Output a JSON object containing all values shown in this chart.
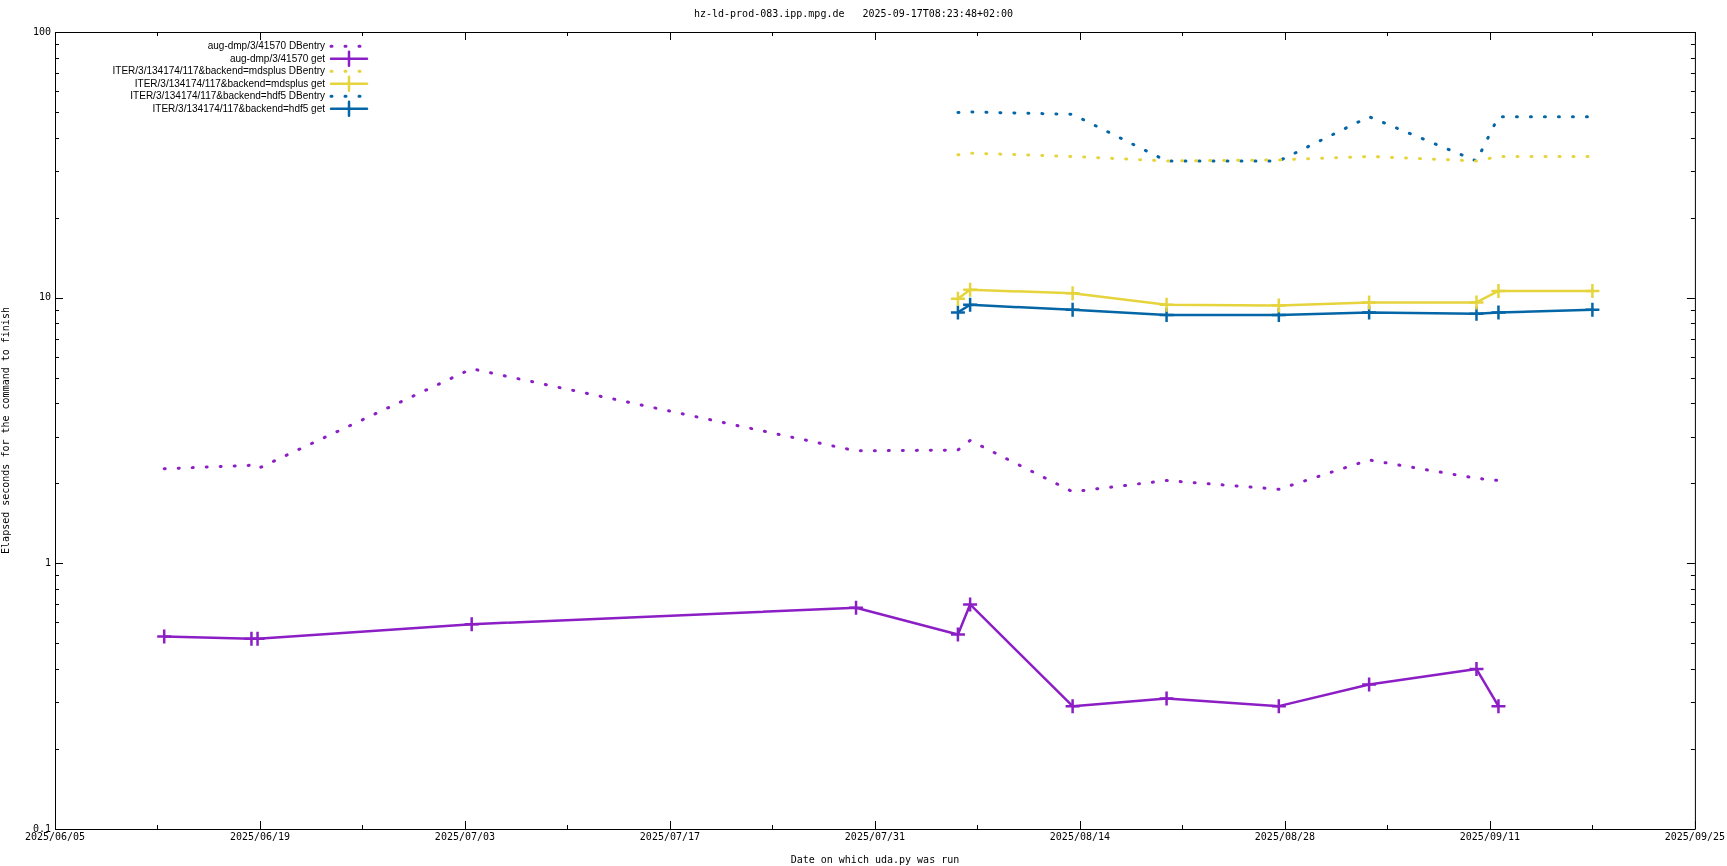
{
  "chart_data": {
    "type": "line",
    "title": "hz-ld-prod-083.ipp.mpg.de   2025-09-17T08:23:48+02:00",
    "xlabel": "Date on which uda.py was run",
    "ylabel": "Elapsed seconds for the command to finish",
    "log": "y",
    "grid": false,
    "legend": "top left",
    "xlim": [
      "2025-06-05",
      "2025-09-25"
    ],
    "xticks": [
      {
        "value": "2025-06-05",
        "label": "2025/06/05"
      },
      {
        "value": "2025-06-12",
        "label": null
      },
      {
        "value": "2025-06-19",
        "label": "2025/06/19"
      },
      {
        "value": "2025-06-26",
        "label": null
      },
      {
        "value": "2025-07-03",
        "label": "2025/07/03"
      },
      {
        "value": "2025-07-10",
        "label": null
      },
      {
        "value": "2025-07-17",
        "label": "2025/07/17"
      },
      {
        "value": "2025-07-24",
        "label": null
      },
      {
        "value": "2025-07-31",
        "label": "2025/07/31"
      },
      {
        "value": "2025-08-07",
        "label": null
      },
      {
        "value": "2025-08-14",
        "label": "2025/08/14"
      },
      {
        "value": "2025-08-21",
        "label": null
      },
      {
        "value": "2025-08-28",
        "label": "2025/08/28"
      },
      {
        "value": "2025-09-04",
        "label": null
      },
      {
        "value": "2025-09-11",
        "label": "2025/09/11"
      },
      {
        "value": "2025-09-18",
        "label": null
      },
      {
        "value": "2025-09-25",
        "label": "2025/09/25"
      }
    ],
    "ylim": [
      0.1,
      100
    ],
    "yticks": [
      0.1,
      {
        "value": 0.2,
        "label": null
      },
      {
        "value": 0.3,
        "label": null
      },
      {
        "value": 0.4,
        "label": null
      },
      {
        "value": 0.5,
        "label": null
      },
      {
        "value": 0.6,
        "label": null
      },
      {
        "value": 0.7,
        "label": null
      },
      {
        "value": 0.8,
        "label": null
      },
      {
        "value": 0.9,
        "label": null
      },
      1,
      {
        "value": 2,
        "label": null
      },
      {
        "value": 3,
        "label": null
      },
      {
        "value": 4,
        "label": null
      },
      {
        "value": 5,
        "label": null
      },
      {
        "value": 6,
        "label": null
      },
      {
        "value": 7,
        "label": null
      },
      {
        "value": 8,
        "label": null
      },
      {
        "value": 9,
        "label": null
      },
      10,
      {
        "value": 20,
        "label": null
      },
      {
        "value": 30,
        "label": null
      },
      {
        "value": 40,
        "label": null
      },
      {
        "value": 50,
        "label": null
      },
      {
        "value": 60,
        "label": null
      },
      {
        "value": 70,
        "label": null
      },
      {
        "value": 80,
        "label": null
      },
      {
        "value": 90,
        "label": null
      },
      100
    ],
    "series": [
      {
        "name": "aug-dmp/3/41570 DBentry",
        "color": "#8b1ec4",
        "marker": "none",
        "line_style": "dotted",
        "x": [
          "2025-06-12T11:00",
          "2025-06-18T10:00",
          "2025-06-18T20:00",
          "2025-07-03T11:00",
          "2025-07-29T17:00",
          "2025-08-05T16:00",
          "2025-08-06T12:00",
          "2025-08-13T12:00",
          "2025-08-19T22:00",
          "2025-08-27T14:00",
          "2025-09-02T18:00",
          "2025-09-10T02:00",
          "2025-09-11T14:00"
        ],
        "values": [
          2.27,
          2.34,
          2.27,
          5.4,
          2.65,
          2.67,
          2.9,
          1.86,
          2.05,
          1.9,
          2.45,
          2.09,
          2.05
        ]
      },
      {
        "name": "aug-dmp/3/41570 get",
        "color": "#8b1ec4",
        "marker": "cross",
        "line_style": "solid",
        "x": [
          "2025-06-12T11:00",
          "2025-06-18T10:00",
          "2025-06-18T20:00",
          "2025-07-03T11:00",
          "2025-07-29T17:00",
          "2025-08-05T16:00",
          "2025-08-06T12:00",
          "2025-08-13T12:00",
          "2025-08-19T22:00",
          "2025-08-27T14:00",
          "2025-09-02T18:00",
          "2025-09-10T02:00",
          "2025-09-11T14:00"
        ],
        "values": [
          0.53,
          0.52,
          0.52,
          0.59,
          0.68,
          0.54,
          0.7,
          0.29,
          0.31,
          0.29,
          0.35,
          0.4,
          0.29
        ]
      },
      {
        "name": "ITER/3/134174/117&backend=mdsplus DBentry",
        "color": "#e6d43c",
        "marker": "none",
        "line_style": "dotted",
        "x": [
          "2025-08-05T16:00",
          "2025-08-06T12:00",
          "2025-08-13T12:00",
          "2025-08-19T22:00",
          "2025-08-27T14:00",
          "2025-09-02T18:00",
          "2025-09-10T02:00",
          "2025-09-11T14:00",
          "2025-09-18T00:00"
        ],
        "values": [
          34.5,
          35,
          34,
          32.7,
          33,
          34,
          32.7,
          34,
          34
        ]
      },
      {
        "name": "ITER/3/134174/117&backend=mdsplus get",
        "color": "#e6d43c",
        "marker": "cross",
        "line_style": "solid",
        "x": [
          "2025-08-05T16:00",
          "2025-08-06T12:00",
          "2025-08-13T12:00",
          "2025-08-19T22:00",
          "2025-08-27T14:00",
          "2025-09-02T18:00",
          "2025-09-10T02:00",
          "2025-09-11T14:00",
          "2025-09-18T00:00"
        ],
        "values": [
          9.9,
          10.7,
          10.4,
          9.4,
          9.35,
          9.6,
          9.6,
          10.6,
          10.6
        ]
      },
      {
        "name": "ITER/3/134174/117&backend=hdf5 DBentry",
        "color": "#0466a6",
        "marker": "none",
        "line_style": "dotted",
        "x": [
          "2025-08-05T16:00",
          "2025-08-06T12:00",
          "2025-08-13T12:00",
          "2025-08-19T22:00",
          "2025-08-27T14:00",
          "2025-09-02T18:00",
          "2025-09-10T02:00",
          "2025-09-11T14:00",
          "2025-09-18T00:00"
        ],
        "values": [
          49.8,
          50,
          49,
          32.7,
          32.7,
          48,
          32.7,
          48,
          48
        ]
      },
      {
        "name": "ITER/3/134174/117&backend=hdf5 get",
        "color": "#0466a6",
        "marker": "cross",
        "line_style": "solid",
        "x": [
          "2025-08-05T16:00",
          "2025-08-06T12:00",
          "2025-08-13T12:00",
          "2025-08-19T22:00",
          "2025-08-27T14:00",
          "2025-09-02T18:00",
          "2025-09-10T02:00",
          "2025-09-11T14:00",
          "2025-09-18T00:00"
        ],
        "values": [
          8.8,
          9.4,
          9.0,
          8.6,
          8.6,
          8.8,
          8.7,
          8.8,
          9.0
        ]
      }
    ]
  }
}
